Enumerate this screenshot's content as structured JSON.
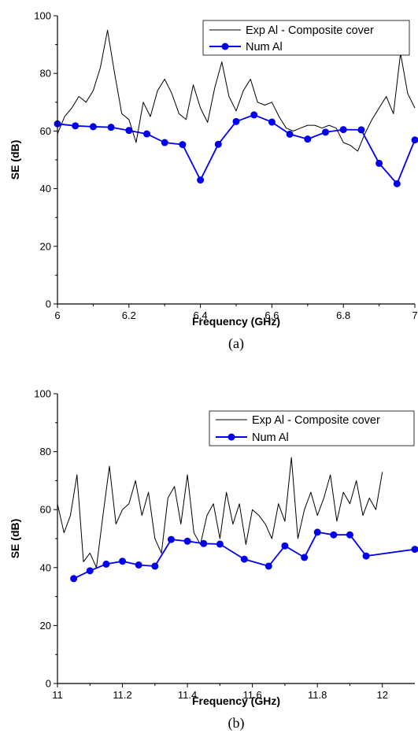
{
  "chart_data": [
    {
      "type": "line",
      "panel_label": "(a)",
      "xlabel": "Frequency (GHz)",
      "ylabel": "SE (dB)",
      "xlim": [
        6,
        7
      ],
      "ylim": [
        0,
        100
      ],
      "x_ticks": [
        "6",
        "6.2",
        "6.4",
        "6.6",
        "6.8",
        "7"
      ],
      "y_ticks": [
        "0",
        "20",
        "40",
        "60",
        "80",
        "100"
      ],
      "legend_position": "top-right",
      "series": [
        {
          "name": "Exp Al - Composite cover",
          "color": "#000000",
          "marker": "none",
          "x": [
            6.0,
            6.02,
            6.04,
            6.06,
            6.08,
            6.1,
            6.12,
            6.14,
            6.16,
            6.18,
            6.2,
            6.22,
            6.24,
            6.26,
            6.28,
            6.3,
            6.32,
            6.34,
            6.36,
            6.38,
            6.4,
            6.42,
            6.44,
            6.46,
            6.48,
            6.5,
            6.52,
            6.54,
            6.56,
            6.58,
            6.6,
            6.62,
            6.64,
            6.66,
            6.68,
            6.7,
            6.72,
            6.74,
            6.76,
            6.78,
            6.8,
            6.82,
            6.84,
            6.86,
            6.88,
            6.9,
            6.92,
            6.94,
            6.96,
            6.98,
            7.0
          ],
          "y": [
            59,
            65,
            68,
            72,
            70,
            74,
            82,
            95,
            80,
            66,
            64,
            56,
            70,
            65,
            74,
            78,
            73,
            66,
            64,
            76,
            68,
            63,
            75,
            84,
            72,
            67,
            74,
            78,
            70,
            69,
            70,
            65,
            61,
            60,
            61,
            62,
            62,
            61,
            62,
            61,
            56,
            55,
            53,
            59,
            64,
            68,
            72,
            66,
            87,
            73,
            68
          ]
        },
        {
          "name": "Num Al",
          "color": "#0000ee",
          "marker": "circle",
          "x": [
            6.0,
            6.05,
            6.1,
            6.15,
            6.2,
            6.25,
            6.3,
            6.35,
            6.4,
            6.45,
            6.5,
            6.55,
            6.6,
            6.65,
            6.7,
            6.75,
            6.8,
            6.85,
            6.9,
            6.95,
            7.0
          ],
          "y": [
            62.5,
            61.8,
            61.5,
            61.3,
            60.2,
            59,
            56,
            55.3,
            43,
            55.4,
            63.3,
            65.6,
            63.1,
            58.9,
            57.2,
            59.6,
            60.5,
            60.4,
            48.8,
            41.7,
            56.9
          ]
        }
      ]
    },
    {
      "type": "line",
      "panel_label": "(b)",
      "xlabel": "Frequency (GHz)",
      "ylabel": "SE (dB)",
      "xlim": [
        11,
        12.1
      ],
      "ylim": [
        0,
        100
      ],
      "x_ticks": [
        "11",
        "11.2",
        "11.4",
        "11.6",
        "11.8",
        "12"
      ],
      "y_ticks": [
        "0",
        "20",
        "40",
        "60",
        "80",
        "100"
      ],
      "legend_position": "top-right",
      "series": [
        {
          "name": "Exp Al - Composite cover",
          "color": "#000000",
          "marker": "none",
          "x": [
            11.0,
            11.02,
            11.04,
            11.06,
            11.08,
            11.1,
            11.12,
            11.14,
            11.16,
            11.18,
            11.2,
            11.22,
            11.24,
            11.26,
            11.28,
            11.3,
            11.32,
            11.34,
            11.36,
            11.38,
            11.4,
            11.42,
            11.44,
            11.46,
            11.48,
            11.5,
            11.52,
            11.54,
            11.56,
            11.58,
            11.6,
            11.62,
            11.64,
            11.66,
            11.68,
            11.7,
            11.72,
            11.74,
            11.76,
            11.78,
            11.8,
            11.82,
            11.84,
            11.86,
            11.88,
            11.9,
            11.92,
            11.94,
            11.96,
            11.98,
            12.0
          ],
          "y": [
            62,
            52,
            58,
            72,
            42,
            45,
            40,
            58,
            75,
            55,
            60,
            62,
            70,
            58,
            66,
            50,
            45,
            64,
            68,
            55,
            72,
            52,
            48,
            58,
            62,
            50,
            66,
            55,
            62,
            48,
            60,
            58,
            55,
            50,
            62,
            56,
            78,
            50,
            60,
            66,
            58,
            64,
            72,
            56,
            66,
            62,
            70,
            58,
            64,
            60,
            73
          ]
        },
        {
          "name": "Num Al",
          "color": "#0000ee",
          "marker": "circle",
          "x": [
            11.05,
            11.1,
            11.15,
            11.2,
            11.25,
            11.3,
            11.35,
            11.4,
            11.45,
            11.5,
            11.575,
            11.65,
            11.7,
            11.76,
            11.8,
            11.85,
            11.9,
            11.95,
            12.1
          ],
          "y": [
            36.2,
            38.9,
            41.2,
            42.2,
            40.9,
            40.5,
            49.7,
            49.1,
            48.3,
            48.1,
            42.9,
            40.5,
            47.5,
            43.5,
            52.2,
            51.3,
            51.3,
            44,
            46.3
          ]
        }
      ]
    }
  ]
}
